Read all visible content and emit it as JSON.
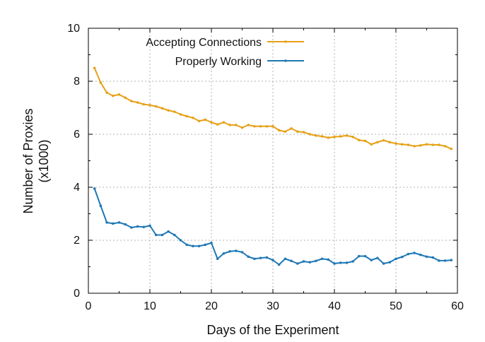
{
  "chart_data": {
    "type": "line",
    "title": "",
    "xlabel": "Days of the Experiment",
    "ylabel": [
      "Number of Proxies",
      "(x1000)"
    ],
    "xlim": [
      0,
      60
    ],
    "ylim": [
      0,
      10
    ],
    "xticks": [
      0,
      10,
      20,
      30,
      40,
      50,
      60
    ],
    "yticks": [
      0,
      2,
      4,
      6,
      8,
      10
    ],
    "grid": true,
    "legend_position": "top-right",
    "x": [
      1,
      2,
      3,
      4,
      5,
      6,
      7,
      8,
      9,
      10,
      11,
      12,
      13,
      14,
      15,
      16,
      17,
      18,
      19,
      20,
      21,
      22,
      23,
      24,
      25,
      26,
      27,
      28,
      29,
      30,
      31,
      32,
      33,
      34,
      35,
      36,
      37,
      38,
      39,
      40,
      41,
      42,
      43,
      44,
      45,
      46,
      47,
      48,
      49,
      50,
      51,
      52,
      53,
      54,
      55,
      56,
      57,
      58,
      59
    ],
    "series": [
      {
        "name": "Accepting Connections",
        "color": "#e6a117",
        "values": [
          8.5,
          7.95,
          7.57,
          7.45,
          7.5,
          7.38,
          7.25,
          7.2,
          7.13,
          7.1,
          7.05,
          6.98,
          6.9,
          6.85,
          6.75,
          6.68,
          6.62,
          6.5,
          6.55,
          6.45,
          6.37,
          6.45,
          6.35,
          6.35,
          6.25,
          6.35,
          6.3,
          6.3,
          6.3,
          6.3,
          6.15,
          6.1,
          6.22,
          6.1,
          6.08,
          6.0,
          5.95,
          5.92,
          5.87,
          5.9,
          5.92,
          5.95,
          5.9,
          5.78,
          5.75,
          5.62,
          5.7,
          5.77,
          5.7,
          5.65,
          5.62,
          5.6,
          5.55,
          5.58,
          5.62,
          5.6,
          5.6,
          5.55,
          5.45
        ]
      },
      {
        "name": "Properly Working",
        "color": "#1f78b4",
        "values": [
          3.95,
          3.3,
          2.67,
          2.63,
          2.67,
          2.6,
          2.48,
          2.52,
          2.5,
          2.55,
          2.2,
          2.2,
          2.33,
          2.2,
          2.0,
          1.83,
          1.78,
          1.78,
          1.83,
          1.9,
          1.3,
          1.5,
          1.58,
          1.6,
          1.55,
          1.38,
          1.3,
          1.33,
          1.35,
          1.25,
          1.08,
          1.3,
          1.22,
          1.12,
          1.2,
          1.17,
          1.22,
          1.3,
          1.27,
          1.12,
          1.15,
          1.15,
          1.2,
          1.4,
          1.4,
          1.25,
          1.33,
          1.12,
          1.17,
          1.3,
          1.37,
          1.48,
          1.52,
          1.45,
          1.38,
          1.35,
          1.23,
          1.23,
          1.25
        ]
      }
    ]
  }
}
